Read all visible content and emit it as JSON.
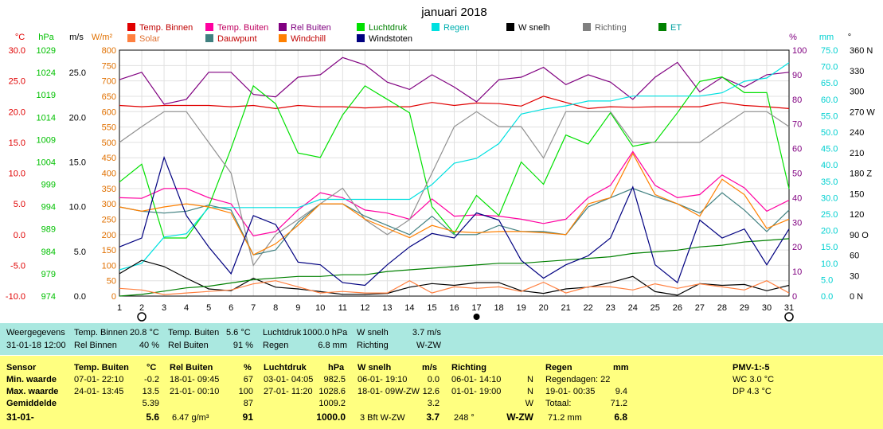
{
  "chart_data": {
    "type": "line",
    "title": "januari 2018",
    "x": [
      1,
      2,
      3,
      4,
      5,
      6,
      7,
      8,
      9,
      10,
      11,
      12,
      13,
      14,
      15,
      16,
      17,
      18,
      19,
      20,
      21,
      22,
      23,
      24,
      25,
      26,
      27,
      28,
      29,
      30,
      31
    ],
    "axes": {
      "temp": {
        "label": "°C",
        "ticks": [
          "30.0",
          "25.0",
          "20.0",
          "15.0",
          "10.0",
          "5.0",
          "0.0",
          "-5.0",
          "-10.0"
        ],
        "range": [
          -10,
          30
        ],
        "color": "#e00000"
      },
      "hpa": {
        "label": "hPa",
        "ticks": [
          "1029",
          "1024",
          "1019",
          "1014",
          "1009",
          "1004",
          "999",
          "994",
          "989",
          "984",
          "979",
          "974"
        ],
        "range": [
          974,
          1029
        ],
        "color": "#00c000"
      },
      "ms": {
        "label": "m/s",
        "ticks": [
          "25.0",
          "20.0",
          "15.0",
          "10.0",
          "5.0",
          "0.0"
        ],
        "range": [
          0,
          27.5
        ],
        "color": "#000000"
      },
      "wm2": {
        "label": "W/m²",
        "ticks": [
          "800",
          "750",
          "700",
          "650",
          "600",
          "550",
          "500",
          "450",
          "400",
          "350",
          "300",
          "250",
          "200",
          "150",
          "100",
          "50",
          "0"
        ],
        "range": [
          0,
          800
        ],
        "color": "#e07000"
      },
      "pct": {
        "label": "%",
        "ticks": [
          "100",
          "90",
          "80",
          "70",
          "60",
          "50",
          "40",
          "30",
          "20",
          "10",
          "0"
        ],
        "range": [
          0,
          100
        ],
        "color": "#800080"
      },
      "mm": {
        "label": "mm",
        "ticks": [
          "75.0",
          "70.0",
          "65.0",
          "60.0",
          "55.0",
          "50.0",
          "45.0",
          "40.0",
          "35.0",
          "30.0",
          "25.0",
          "20.0",
          "15.0",
          "10.0",
          "5.0",
          "0.0"
        ],
        "range": [
          0,
          75
        ],
        "color": "#00d0d0"
      },
      "dir": {
        "label": "°",
        "ticks": [
          "360 N",
          "330",
          "300",
          "270 W",
          "240",
          "210",
          "180 Z",
          "150",
          "120",
          "90 O",
          "60",
          "30",
          "0 N"
        ],
        "range": [
          0,
          360
        ],
        "color": "#000000"
      }
    },
    "grid": true,
    "series": [
      {
        "name": "Temp. Binnen",
        "color": "#e00000",
        "axis": "temp",
        "values": [
          21.0,
          20.8,
          21.0,
          21.0,
          21.0,
          20.8,
          21.0,
          20.5,
          21.0,
          20.8,
          20.8,
          20.6,
          20.8,
          20.8,
          21.5,
          21.0,
          21.4,
          21.3,
          20.9,
          22.5,
          21.5,
          20.5,
          20.8,
          20.7,
          20.8,
          20.8,
          20.8,
          21.5,
          21.0,
          20.8,
          20.5
        ]
      },
      {
        "name": "Temp. Buiten",
        "color": "#ff00a0",
        "axis": "temp",
        "values": [
          6.0,
          5.9,
          7.5,
          7.5,
          6.0,
          5.0,
          -0.2,
          0.5,
          4.0,
          6.8,
          6.0,
          4.0,
          3.5,
          2.5,
          5.8,
          3.0,
          3.2,
          3.0,
          2.5,
          1.8,
          2.5,
          6.0,
          8.0,
          13.5,
          8.0,
          6.0,
          6.5,
          9.7,
          7.6,
          3.8,
          5.6
        ]
      },
      {
        "name": "Rel Buiten",
        "color": "#800080",
        "axis": "pct",
        "values": [
          88,
          91,
          78,
          80,
          91,
          91,
          82,
          81,
          89,
          90,
          97,
          94,
          87,
          84,
          90,
          85,
          79,
          88,
          89,
          93,
          86,
          90,
          87,
          80,
          89,
          95,
          83,
          89,
          85,
          90,
          91
        ]
      },
      {
        "name": "Luchtdruk",
        "color": "#00e000",
        "axis": "hpa",
        "values": [
          999.5,
          1003.5,
          987.0,
          987.0,
          994.0,
          1007.0,
          1021.0,
          1017.0,
          1006.0,
          1005.0,
          1014.5,
          1021.0,
          1018.0,
          1015.0,
          994.0,
          988.0,
          996.5,
          992.0,
          1004.0,
          999.0,
          1010.0,
          1008.0,
          1015.0,
          1007.5,
          1008.5,
          1015.0,
          1022.0,
          1023.0,
          1019.5,
          1019.5,
          998.0
        ]
      },
      {
        "name": "Regen",
        "color": "#00e0e0",
        "axis": "mm",
        "values": [
          8.0,
          10.0,
          18.0,
          19.0,
          27.0,
          27.0,
          27.0,
          27.0,
          27.0,
          29.5,
          29.5,
          29.5,
          29.5,
          29.5,
          34.0,
          40.5,
          42.0,
          46.5,
          55.5,
          57.0,
          58.0,
          59.5,
          59.5,
          61.0,
          61.0,
          61.0,
          61.0,
          62.0,
          65.5,
          66.5,
          71.2
        ]
      },
      {
        "name": "W snelh",
        "color": "#000000",
        "axis": "ms",
        "values": [
          2.5,
          4.0,
          3.3,
          2.0,
          0.8,
          0.6,
          2.0,
          1.0,
          0.8,
          0.5,
          0.2,
          0.2,
          0.3,
          1.0,
          1.4,
          1.2,
          1.5,
          1.5,
          0.6,
          0.3,
          0.8,
          1.0,
          1.5,
          2.2,
          0.5,
          0.1,
          1.4,
          1.2,
          1.3,
          0.6,
          1.2
        ]
      },
      {
        "name": "Richting",
        "color": "#909090",
        "axis": "dir",
        "values": [
          225,
          248,
          270,
          270,
          225,
          180,
          45,
          90,
          112,
          135,
          158,
          112,
          90,
          112,
          180,
          248,
          270,
          248,
          248,
          202,
          270,
          270,
          270,
          225,
          225,
          225,
          225,
          248,
          270,
          270,
          248
        ]
      },
      {
        "name": "ET",
        "color": "#008000",
        "axis": "mm",
        "values": [
          0.0,
          0.5,
          1.5,
          2.5,
          3.0,
          4.0,
          5.0,
          5.5,
          6.0,
          6.0,
          6.5,
          6.5,
          7.5,
          8.0,
          8.5,
          9.0,
          9.5,
          10.0,
          10.0,
          10.5,
          11.0,
          11.5,
          12.0,
          13.0,
          13.5,
          14.0,
          15.0,
          15.5,
          16.5,
          17.0,
          17.5
        ]
      },
      {
        "name": "Solar",
        "color": "#ff8040",
        "axis": "wm2",
        "values": [
          25,
          20,
          5,
          10,
          15,
          20,
          40,
          50,
          30,
          10,
          15,
          10,
          10,
          50,
          10,
          30,
          25,
          30,
          15,
          45,
          10,
          30,
          30,
          20,
          40,
          25,
          40,
          30,
          20,
          50,
          10
        ]
      },
      {
        "name": "Dauwpunt",
        "color": "#408080",
        "axis": "temp",
        "values": [
          4.5,
          3.8,
          3.5,
          3.8,
          4.8,
          4.0,
          -3.3,
          -2.5,
          2.0,
          5.0,
          5.0,
          3.0,
          1.5,
          0.0,
          3.0,
          0.0,
          0.0,
          1.5,
          0.5,
          0.5,
          0.0,
          4.5,
          6.0,
          7.5,
          6.2,
          5.0,
          3.5,
          6.8,
          4.0,
          0.5,
          4.0
        ]
      },
      {
        "name": "Windchill",
        "color": "#ff8000",
        "axis": "temp",
        "values": [
          4.5,
          3.8,
          4.5,
          5.0,
          4.5,
          3.5,
          -3.3,
          -1.5,
          1.5,
          5.0,
          5.0,
          2.5,
          1.0,
          -0.5,
          1.5,
          0.5,
          0.3,
          0.5,
          0.5,
          0.3,
          0.0,
          5.0,
          6.0,
          13.2,
          6.5,
          5.0,
          3.0,
          9.0,
          6.5,
          1.0,
          2.5
        ]
      },
      {
        "name": "Windstoten",
        "color": "#000080",
        "axis": "ms",
        "values": [
          5.5,
          6.5,
          15.5,
          9.0,
          5.5,
          2.5,
          9.0,
          8.0,
          3.8,
          3.5,
          1.5,
          1.2,
          3.5,
          5.5,
          7.0,
          6.5,
          9.3,
          8.5,
          4.0,
          2.0,
          3.5,
          4.5,
          6.5,
          12.2,
          3.5,
          1.5,
          8.5,
          6.5,
          7.5,
          3.5,
          7.5
        ]
      }
    ],
    "legend": [
      {
        "name": "Temp. Binnen",
        "color": "#e00000",
        "text_color": "#c00000"
      },
      {
        "name": "Temp. Buiten",
        "color": "#ff00a0",
        "text_color": "#c00060"
      },
      {
        "name": "Rel Buiten",
        "color": "#800080",
        "text_color": "#800080"
      },
      {
        "name": "Luchtdruk",
        "color": "#00e000",
        "text_color": "#008000"
      },
      {
        "name": "Regen",
        "color": "#00e0e0",
        "text_color": "#00b0b0"
      },
      {
        "name": "W snelh",
        "color": "#000000",
        "text_color": "#000000"
      },
      {
        "name": "Richting",
        "color": "#808080",
        "text_color": "#606060"
      },
      {
        "name": "ET",
        "color": "#008000",
        "text_color": "#00a0a0"
      },
      {
        "name": "Solar",
        "color": "#ff8040",
        "text_color": "#e07030"
      },
      {
        "name": "Dauwpunt",
        "color": "#408080",
        "text_color": "#c00000"
      },
      {
        "name": "Windchill",
        "color": "#ff8000",
        "text_color": "#c00000"
      },
      {
        "name": "Windstoten",
        "color": "#000080",
        "text_color": "#000000"
      }
    ],
    "wind_markers": {
      "2": "O",
      "17": "●",
      "31": "O"
    }
  },
  "current": {
    "label": "Weergegevens",
    "datetime": "31-01-18 12:00",
    "temp_binnen_label": "Temp. Binnen",
    "temp_binnen": "20.8 °C",
    "rel_binnen_label": "Rel Binnen",
    "rel_binnen": "40 %",
    "temp_buiten_label": "Temp. Buiten",
    "temp_buiten": "5.6 °C",
    "rel_buiten_label": "Rel Buiten",
    "rel_buiten": "91 %",
    "luchtdruk_label": "Luchtdruk",
    "luchtdruk": "1000.0 hPa",
    "regen_label": "Regen",
    "regen": "6.8 mm",
    "wsnelh_label": "W snelh",
    "wsnelh": "3.7 m/s",
    "richting_label": "Richting",
    "richting": "W-ZW"
  },
  "stats": {
    "rows": [
      "Sensor",
      "Min. waarde",
      "Max. waarde",
      "Gemiddelde",
      "31-01-"
    ],
    "temp": {
      "head": "Temp. Buiten",
      "unit": "°C",
      "min_t": "07-01-  22:10",
      "min": "-0.2",
      "max_t": "24-01-  13:45",
      "max": "13.5",
      "avg": "5.39",
      "cur": "5.6"
    },
    "rel": {
      "head": "Rel Buiten",
      "unit": "%",
      "min_t": "18-01-  09:45",
      "min": "67",
      "max_t": "21-01-  00:10",
      "max": "100",
      "avg": "87",
      "cur_extra": "6.47 g/m³",
      "cur": "91"
    },
    "druk": {
      "head": "Luchtdruk",
      "unit": "hPa",
      "min_t": "03-01-  04:05",
      "min": "982.5",
      "max_t": "27-01-  11:20",
      "max": "1028.6",
      "avg": "1009.2",
      "cur": "1000.0"
    },
    "wind": {
      "head": "W snelh",
      "unit": "m/s",
      "min_t": "06-01-  19:10",
      "min": "0.0",
      "max_t": "18-01-  09W-ZW",
      "max": "12.6",
      "avg": "3.2",
      "cur_extra": "3 Bft W-ZW",
      "cur": "3.7"
    },
    "richting": {
      "head": "Richting",
      "min_t": "06-01-  14:10",
      "min": "N",
      "max_t": "01-01-  19:00",
      "max": "N",
      "avg": "W",
      "cur_extra": "248 °",
      "cur": "W-ZW"
    },
    "regen": {
      "head": "Regen",
      "unit": "mm",
      "line1": "Regendagen: 22",
      "max_t": "19-01-  00:35",
      "max": "9.4",
      "tot_label": "Totaal:",
      "tot": "71.2",
      "cur_extra": "71.2 mm",
      "cur": "6.8"
    },
    "pmv": {
      "head": "PMV-1:-5",
      "wc": "WC 3.0 °C",
      "dp": "DP 4.3 °C"
    }
  }
}
